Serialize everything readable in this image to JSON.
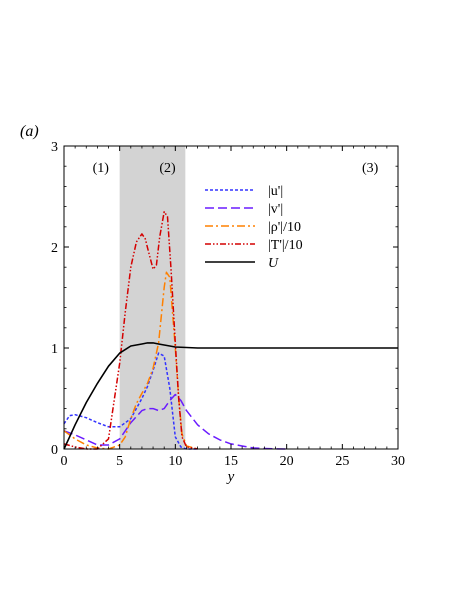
{
  "chart_data": {
    "type": "line",
    "panel_label": "(a)",
    "xlabel": "y",
    "ylabel": "",
    "xlim": [
      0,
      30
    ],
    "ylim": [
      0,
      3
    ],
    "xticks": [
      "0",
      "5",
      "10",
      "15",
      "20",
      "25",
      "30"
    ],
    "yticks": [
      "0",
      "1",
      "2",
      "3"
    ],
    "grid": false,
    "legend_position": "upper-right",
    "regions": [
      {
        "label": "(1)",
        "label_x": 3.3
      },
      {
        "label": "(2)",
        "label_x": 9.3,
        "shaded_from": 5.0,
        "shaded_to": 10.9,
        "shade_color": "#d3d3d3"
      },
      {
        "label": "(3)",
        "label_x": 27.5
      }
    ],
    "region_label_y": 2.78,
    "series": [
      {
        "name": "|u'|",
        "color": "#3333ff",
        "dash": "short-dash",
        "x": [
          0,
          0.5,
          1,
          2,
          3,
          4,
          5,
          6,
          7,
          7.5,
          8,
          8.5,
          9,
          9.5,
          10,
          10.5,
          11,
          12
        ],
        "y": [
          0.25,
          0.33,
          0.34,
          0.31,
          0.26,
          0.22,
          0.22,
          0.3,
          0.5,
          0.62,
          0.78,
          0.95,
          0.92,
          0.6,
          0.12,
          0.02,
          0.0,
          0.0
        ]
      },
      {
        "name": "|v'|",
        "color": "#6a1bff",
        "dash": "long-dash",
        "x": [
          0,
          1,
          2,
          3,
          4,
          5,
          6,
          7,
          7.5,
          8,
          8.5,
          9,
          9.5,
          10,
          10.5,
          11,
          12,
          13,
          14,
          15,
          16,
          17,
          18,
          19,
          20
        ],
        "y": [
          0.18,
          0.14,
          0.09,
          0.04,
          0.04,
          0.1,
          0.26,
          0.38,
          0.4,
          0.4,
          0.38,
          0.4,
          0.48,
          0.54,
          0.48,
          0.38,
          0.24,
          0.15,
          0.09,
          0.05,
          0.03,
          0.01,
          0.005,
          0.002,
          0.0
        ]
      },
      {
        "name": "|ρ'|/10",
        "color": "#ff8000",
        "dash": "dash-dot",
        "x": [
          0,
          1,
          2,
          3,
          4,
          5,
          5.5,
          6,
          6.5,
          7,
          7.5,
          8,
          8.5,
          9,
          9.2,
          9.5,
          10,
          10.3,
          10.6,
          11,
          12
        ],
        "y": [
          0.18,
          0.1,
          0.04,
          0.01,
          0.0,
          0.04,
          0.12,
          0.3,
          0.45,
          0.55,
          0.65,
          0.8,
          1.05,
          1.6,
          1.75,
          1.7,
          1.0,
          0.5,
          0.15,
          0.03,
          0.0
        ]
      },
      {
        "name": "|T'|/10",
        "color": "#d40000",
        "dash": "dash-dot-dot",
        "x": [
          0,
          1,
          2,
          3,
          4,
          5,
          5.5,
          6,
          6.5,
          7,
          7.3,
          7.6,
          8,
          8.3,
          8.6,
          9,
          9.3,
          9.6,
          10,
          10.3,
          10.6,
          11,
          12
        ],
        "y": [
          0.05,
          0.02,
          0.0,
          0.0,
          0.1,
          0.85,
          1.35,
          1.8,
          2.05,
          2.13,
          2.08,
          1.95,
          1.78,
          1.82,
          2.1,
          2.35,
          2.3,
          1.8,
          1.05,
          0.5,
          0.12,
          0.02,
          0.0
        ]
      },
      {
        "name": "U",
        "color": "#000000",
        "dash": "solid",
        "x": [
          0,
          0.5,
          1,
          2,
          3,
          4,
          5,
          6,
          7,
          7.5,
          8,
          8.5,
          9,
          9.5,
          10,
          11,
          12,
          15,
          20,
          25,
          30
        ],
        "y": [
          0.0,
          0.12,
          0.24,
          0.46,
          0.65,
          0.82,
          0.95,
          1.02,
          1.04,
          1.05,
          1.05,
          1.04,
          1.03,
          1.02,
          1.01,
          1.005,
          1.0,
          1.0,
          1.0,
          1.0,
          1.0
        ]
      }
    ]
  }
}
